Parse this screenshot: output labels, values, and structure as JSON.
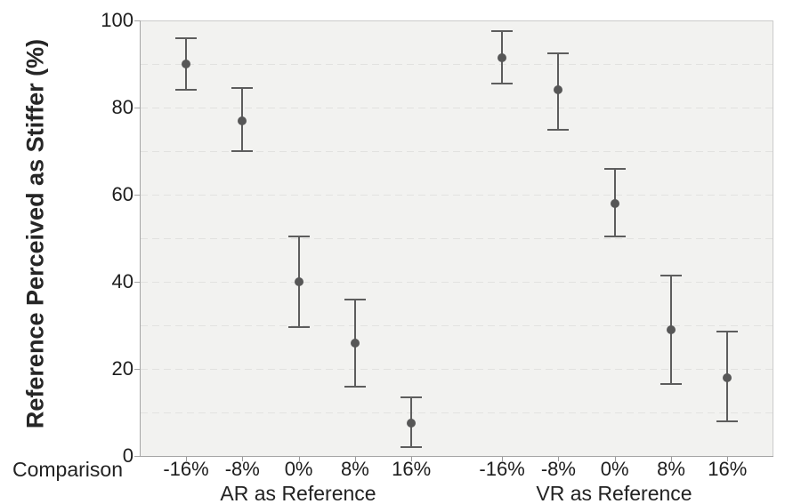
{
  "chart_data": {
    "type": "scatter",
    "subtype": "point-estimates-with-error-bars",
    "title": "",
    "ylabel": "Reference Perceived as Stiffer (%)",
    "xlabel": "Comparison",
    "ylim": [
      0,
      100
    ],
    "yticks": [
      0,
      20,
      40,
      60,
      80,
      100
    ],
    "grid": {
      "horizontal": true,
      "style": "dashed",
      "interval": 10
    },
    "legend": "none",
    "groups": [
      {
        "label": "AR as Reference",
        "categories": [
          "-16%",
          "-8%",
          "0%",
          "8%",
          "16%"
        ],
        "means": [
          90,
          77,
          40,
          26,
          7.5
        ],
        "ci_low": [
          84,
          70,
          29.5,
          16,
          2
        ],
        "ci_high": [
          96,
          84.5,
          50.5,
          36,
          13.5
        ]
      },
      {
        "label": "VR as Reference",
        "categories": [
          "-16%",
          "-8%",
          "0%",
          "8%",
          "16%"
        ],
        "means": [
          91.5,
          84,
          58,
          29,
          18
        ],
        "ci_low": [
          85.5,
          75,
          50.5,
          16.5,
          8
        ],
        "ci_high": [
          97.5,
          92.5,
          66,
          41.5,
          28.5
        ]
      }
    ],
    "colors": {
      "marker": "#575757",
      "error_bar": "#5d5d5d",
      "plot_background": "#f2f2f0",
      "gridline": "#e2e2e0",
      "axis": "#a6a6a6",
      "border": "#cbcbcb",
      "text": "#1f1f1f"
    }
  }
}
